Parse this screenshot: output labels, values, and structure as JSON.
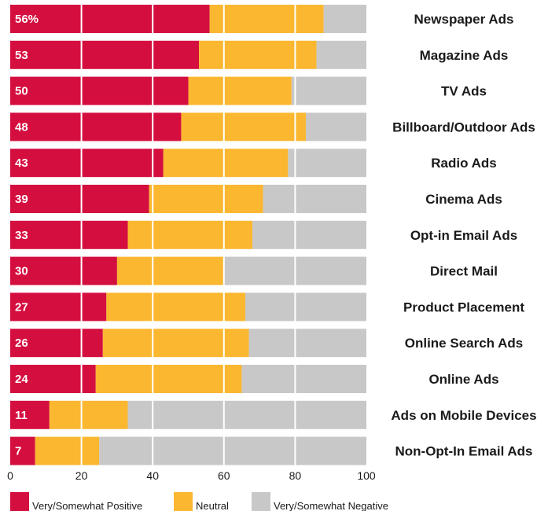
{
  "chart_data": {
    "type": "bar",
    "orientation": "horizontal",
    "stacked": true,
    "categories": [
      "Newspaper Ads",
      "Magazine Ads",
      "TV Ads",
      "Billboard/Outdoor Ads",
      "Radio Ads",
      "Cinema Ads",
      "Opt-in Email Ads",
      "Direct Mail",
      "Product Placement",
      "Online Search Ads",
      "Online Ads",
      "Ads on Mobile Devices",
      "Non-Opt-In Email Ads"
    ],
    "series": [
      {
        "name": "Very/Somewhat Positive",
        "color": "#d40e3f",
        "values": [
          56,
          53,
          50,
          48,
          43,
          39,
          33,
          30,
          27,
          26,
          24,
          11,
          7
        ]
      },
      {
        "name": "Neutral",
        "color": "#fbb730",
        "values": [
          32,
          33,
          29,
          35,
          35,
          32,
          35,
          30,
          39,
          41,
          41,
          22,
          18
        ]
      },
      {
        "name": "Very/Somewhat Negative",
        "color": "#c8c8c9",
        "values": [
          12,
          14,
          21,
          17,
          22,
          29,
          32,
          40,
          34,
          33,
          35,
          67,
          75
        ]
      }
    ],
    "value_labels": [
      "56%",
      "53",
      "50",
      "48",
      "43",
      "39",
      "33",
      "30",
      "27",
      "26",
      "24",
      "11",
      "7"
    ],
    "xticks": [
      "0",
      "20",
      "40",
      "60",
      "80",
      "100"
    ],
    "xlim": [
      0,
      100
    ],
    "grid": true,
    "legend_position": "bottom",
    "title": "",
    "xlabel": "",
    "ylabel": ""
  }
}
